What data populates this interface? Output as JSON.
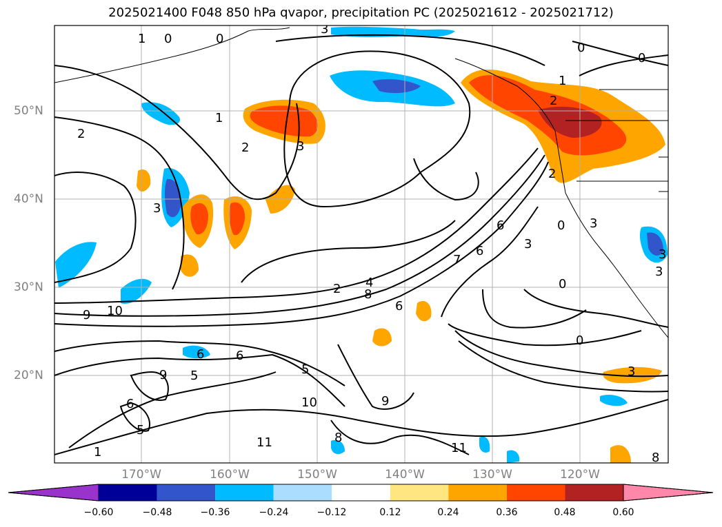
{
  "title": "2025021400 F048 850 hPa qvapor, precipitation PC (2025021612 - 2025021712)",
  "lat_labels": [
    "50°N",
    "40°N",
    "30°N",
    "20°N"
  ],
  "lon_labels": [
    "170°W",
    "160°W",
    "150°W",
    "140°W",
    "130°W",
    "120°W"
  ],
  "colorbar": {
    "ticks": [
      "−0.60",
      "−0.48",
      "−0.36",
      "−0.24",
      "−0.12",
      "0.12",
      "0.24",
      "0.36",
      "0.48",
      "0.60"
    ],
    "colors": [
      "#9933cc",
      "#000099",
      "#3355cc",
      "#00bbff",
      "#aaddff",
      "#ffffff",
      "#ffe680",
      "#ffa500",
      "#ff4500",
      "#b22222",
      "#ff88aa"
    ]
  },
  "contour_labels": [
    "1",
    "0",
    "0",
    "3",
    "0",
    "0",
    "1",
    "2",
    "2",
    "1",
    "2",
    "3",
    "3",
    "3",
    "2",
    "4",
    "8",
    "7",
    "6",
    "6",
    "3",
    "0",
    "0",
    "0",
    "6",
    "9",
    "10",
    "6",
    "9",
    "5",
    "6",
    "5",
    "10",
    "9",
    "11",
    "11",
    "8",
    "6",
    "5",
    "1",
    "3",
    "8",
    "3",
    "3",
    "2"
  ],
  "colors": {
    "orange": "#ffa500",
    "red": "#ff4500",
    "darkred": "#b22222",
    "yellow": "#ffe680",
    "lightblue": "#aaddff",
    "cyan": "#00bbff",
    "blue": "#3355cc",
    "navy": "#000099"
  }
}
